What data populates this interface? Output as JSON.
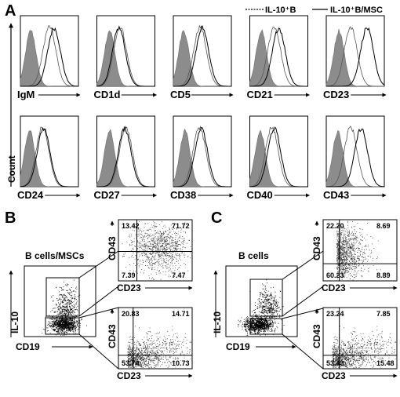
{
  "panels": {
    "A": {
      "letter": "A",
      "legend": {
        "dashed": "IL-10⁺B",
        "solid": "IL-10⁺B/MSC"
      },
      "y_label": "Count",
      "row1": [
        "IgM",
        "CD1d",
        "CD5",
        "CD21",
        "CD23"
      ],
      "row2": [
        "CD24",
        "CD27",
        "CD38",
        "CD40",
        "CD43"
      ]
    },
    "B": {
      "letter": "B",
      "population": "B cells/MSCs",
      "x_label": "CD19",
      "y_label": "IL-10",
      "top_plot": {
        "x_label": "CD23",
        "y_label": "CD43",
        "q_tl": "13.42",
        "q_tr": "71.72",
        "q_bl": "7.39",
        "q_br": "7.47"
      },
      "bottom_plot": {
        "x_label": "CD23",
        "y_label": "CD43",
        "q_tl": "20.83",
        "q_tr": "14.71",
        "q_bl": "53.74",
        "q_br": "10.73"
      }
    },
    "C": {
      "letter": "C",
      "population": "B cells",
      "x_label": "CD19",
      "y_label": "IL-10",
      "top_plot": {
        "x_label": "CD23",
        "y_label": "CD43",
        "q_tl": "22.20",
        "q_tr": "8.69",
        "q_bl": "60.23",
        "q_br": "8.89"
      },
      "bottom_plot": {
        "x_label": "CD23",
        "y_label": "CD43",
        "q_tl": "23.24",
        "q_tr": "7.85",
        "q_bl": "53.43",
        "q_br": "15.48"
      }
    }
  }
}
